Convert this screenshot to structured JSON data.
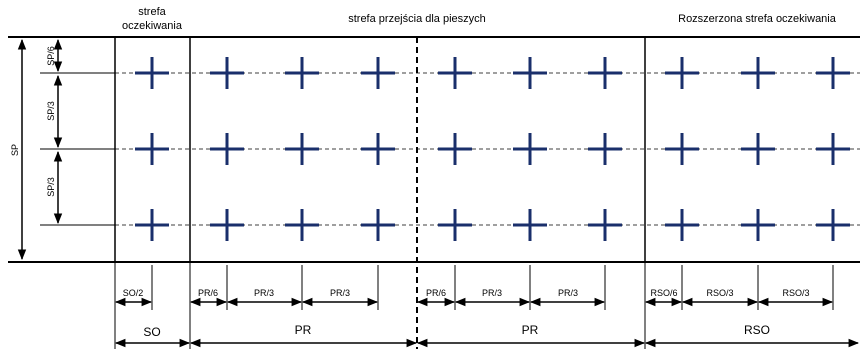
{
  "zones": {
    "so_title_line1": "strefa",
    "so_title_line2": "oczekiwania",
    "pr_title": "strefa przejścia dla pieszych",
    "rso_title": "Rozszerzona strefa oczekiwania"
  },
  "vertical_dims": {
    "total": "SP",
    "top": "SP/6",
    "middle": "SP/3",
    "bottom": "SP/3"
  },
  "small_dims": {
    "so_half": "SO/2",
    "pr_sixth": "PR/6",
    "pr_third": "PR/3",
    "rso_sixth": "RSO/6",
    "rso_third": "RSO/3"
  },
  "big_dims": {
    "so": "SO",
    "pr": "PR",
    "rso": "RSO"
  },
  "colors": {
    "marker": "#1a2f6b",
    "line": "#000000"
  },
  "icons": {
    "marker": "cross-marker-icon"
  }
}
